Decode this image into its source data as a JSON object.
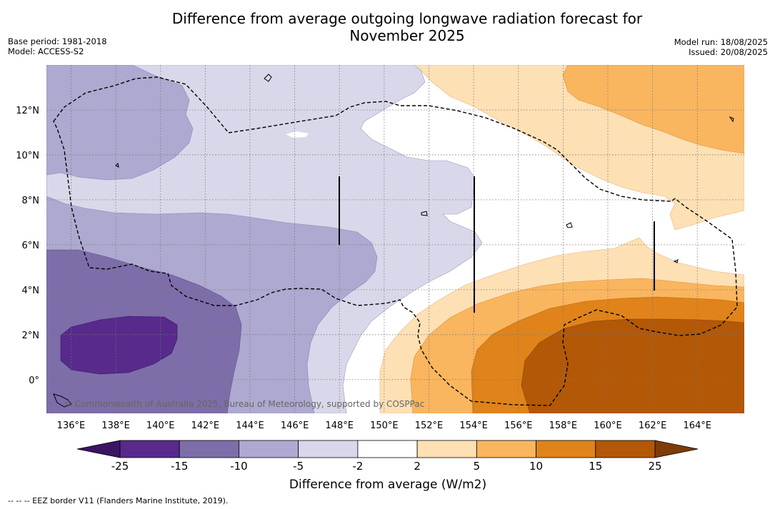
{
  "title_line1": "Difference from average outgoing longwave radiation forecast for",
  "title_line2": "November 2025",
  "base_period": "Base period: 1981-2018",
  "model": "Model: ACCESS-S2",
  "model_run": "Model run: 18/08/2025",
  "issued": "Issued: 20/08/2025",
  "copyright": "© Commonwealth of Australia 2025, Bureau of Meteorology, supported by COSPPac",
  "footnote": "--  --  -- EEZ border V11 (Flanders Marine Institute, 2019).",
  "colorbar": {
    "title": "Difference from average (W/m2)",
    "levels": [
      "-25",
      "-15",
      "-10",
      "-5",
      "-2",
      "2",
      "5",
      "10",
      "15",
      "25"
    ],
    "colors": [
      "#572a8b",
      "#7d6ea9",
      "#aea9d0",
      "#d8d8ea",
      "#ffffff",
      "#fde0b4",
      "#fab55f",
      "#e0831a",
      "#b25806"
    ],
    "under_color": "#3d1366",
    "over_color": "#7f3b08"
  },
  "map": {
    "lon_ticks": [
      "136°E",
      "138°E",
      "140°E",
      "142°E",
      "144°E",
      "146°E",
      "148°E",
      "150°E",
      "152°E",
      "154°E",
      "156°E",
      "158°E",
      "160°E",
      "162°E",
      "164°E"
    ],
    "lat_ticks": [
      "12°N",
      "10°N",
      "8°N",
      "6°N",
      "4°N",
      "2°N",
      "0°"
    ],
    "lon_range": [
      134.9,
      166.1
    ],
    "lat_range": [
      -1.5,
      14.0
    ],
    "grid": true
  }
}
